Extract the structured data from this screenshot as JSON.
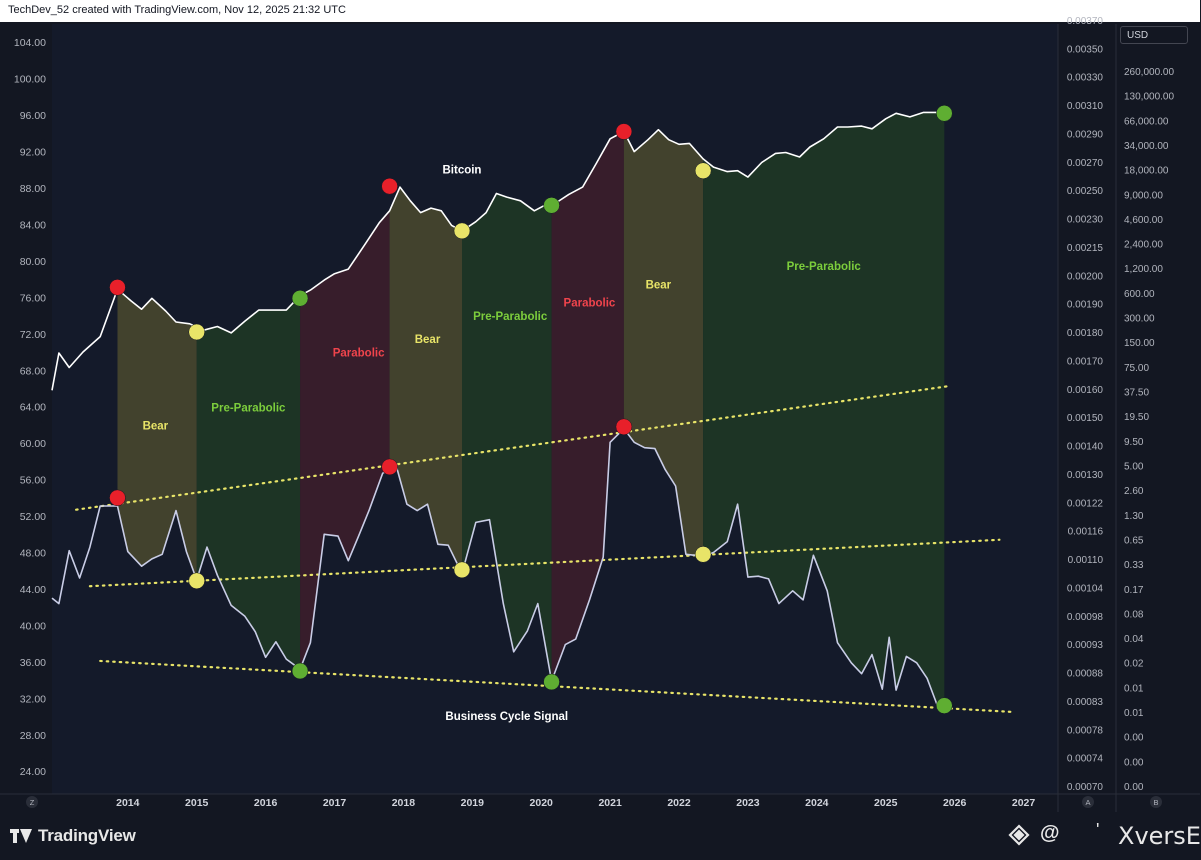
{
  "header": {
    "text": "TechDev_52 created with TradingView.com, Nov 12, 2025 21:32 UTC"
  },
  "currency_button": {
    "label": "USD"
  },
  "footer": {
    "brand": "TradingView",
    "watermark_at": "@",
    "watermark_tick": "'",
    "watermark_name": "XversE"
  },
  "axis_buttons": {
    "left": "Z",
    "a": "A",
    "b": "B"
  },
  "colors": {
    "background": "#131722",
    "bear_band": "#4a4a2e",
    "pre_parabolic_band": "#1f3a25",
    "parabolic_band": "#3d1f2c",
    "red_marker": "#e8202a",
    "yellow_marker": "#e8e468",
    "green_marker": "#5fae32",
    "trendline": "#e8e468",
    "bitcoin_line": "#ffffff",
    "signal_line": "#c9cde6",
    "label_bear": "#e8e468",
    "label_pre_parabolic": "#7ccd3c",
    "label_parabolic": "#f0444c"
  },
  "chart_data": {
    "type": "line",
    "left_axis_ticks": [
      "104.00",
      "100.00",
      "96.00",
      "92.00",
      "88.00",
      "84.00",
      "80.00",
      "76.00",
      "72.00",
      "68.00",
      "64.00",
      "60.00",
      "56.00",
      "52.00",
      "48.00",
      "44.00",
      "40.00",
      "36.00",
      "32.00",
      "28.00",
      "24.00"
    ],
    "left_axis_values": [
      104,
      100,
      96,
      92,
      88,
      84,
      80,
      76,
      72,
      68,
      64,
      60,
      56,
      52,
      48,
      44,
      40,
      36,
      32,
      28,
      24
    ],
    "mid_axis_ticks": [
      "0.00370",
      "0.00350",
      "0.00330",
      "0.00310",
      "0.00290",
      "0.00270",
      "0.00250",
      "0.00230",
      "0.00215",
      "0.00200",
      "0.00190",
      "0.00180",
      "0.00170",
      "0.00160",
      "0.00150",
      "0.00140",
      "0.00130",
      "0.00122",
      "0.00116",
      "0.00110",
      "0.00104",
      "0.00098",
      "0.00093",
      "0.00088",
      "0.00083",
      "0.00078",
      "0.00074",
      "0.00070"
    ],
    "right_axis_ticks": [
      "260,000.00",
      "130,000.00",
      "66,000.00",
      "34,000.00",
      "18,000.00",
      "9,000.00",
      "4,600.00",
      "2,400.00",
      "1,200.00",
      "600.00",
      "300.00",
      "150.00",
      "75.00",
      "37.50",
      "19.50",
      "9.50",
      "5.00",
      "2.60",
      "1.30",
      "0.65",
      "0.33",
      "0.17",
      "0.08",
      "0.04",
      "0.02",
      "0.01",
      "0.01",
      "0.00",
      "0.00",
      "0.00"
    ],
    "x_ticks": [
      "2014",
      "2015",
      "2016",
      "2017",
      "2018",
      "2019",
      "2020",
      "2021",
      "2022",
      "2023",
      "2024",
      "2025",
      "2026",
      "2027"
    ],
    "x_tick_values": [
      2014,
      2015,
      2016,
      2017,
      2018,
      2019,
      2020,
      2021,
      2022,
      2023,
      2024,
      2025,
      2026,
      2027
    ],
    "xlim": [
      2012.9,
      2027.5
    ],
    "ylim": [
      21.5,
      106
    ],
    "series": [
      {
        "name": "Bitcoin",
        "x": [
          2012.9,
          2013.0,
          2013.15,
          2013.35,
          2013.6,
          2013.85,
          2014.05,
          2014.2,
          2014.35,
          2014.55,
          2014.7,
          2014.9,
          2015.1,
          2015.3,
          2015.5,
          2015.7,
          2015.9,
          2016.1,
          2016.3,
          2016.5,
          2016.65,
          2016.85,
          2017.0,
          2017.2,
          2017.45,
          2017.65,
          2017.8,
          2017.95,
          2018.1,
          2018.25,
          2018.4,
          2018.55,
          2018.7,
          2018.85,
          2019.05,
          2019.2,
          2019.35,
          2019.5,
          2019.7,
          2019.9,
          2020.05,
          2020.2,
          2020.4,
          2020.6,
          2020.8,
          2021.0,
          2021.2,
          2021.35,
          2021.55,
          2021.7,
          2021.85,
          2022.0,
          2022.15,
          2022.35,
          2022.5,
          2022.7,
          2022.85,
          2023.0,
          2023.2,
          2023.4,
          2023.55,
          2023.75,
          2023.9,
          2024.1,
          2024.3,
          2024.45,
          2024.65,
          2024.8,
          2025.0,
          2025.15,
          2025.35,
          2025.55,
          2025.75,
          2025.85
        ],
        "y": [
          65.8,
          69.9,
          68.3,
          70.0,
          71.7,
          76.9,
          75.6,
          74.7,
          75.9,
          74.5,
          73.3,
          73.1,
          72.4,
          72.8,
          72.1,
          73.4,
          74.6,
          74.6,
          74.6,
          76.2,
          76.8,
          77.9,
          78.6,
          79.1,
          81.9,
          84.2,
          85.5,
          88.1,
          86.6,
          85.3,
          85.8,
          85.5,
          83.9,
          83.3,
          84.3,
          85.3,
          87.4,
          87.0,
          86.6,
          85.5,
          86.1,
          86.3,
          87.3,
          88.1,
          90.7,
          93.4,
          94.2,
          92.0,
          93.3,
          94.4,
          93.3,
          92.8,
          92.9,
          91.2,
          90.3,
          89.8,
          89.9,
          89.2,
          90.8,
          91.8,
          91.9,
          91.4,
          92.5,
          93.4,
          94.7,
          94.7,
          94.8,
          94.5,
          95.6,
          96.2,
          95.8,
          96.3,
          96.3,
          96.2
        ]
      },
      {
        "name": "Business Cycle Signal",
        "x": [
          2012.9,
          2013.0,
          2013.15,
          2013.3,
          2013.45,
          2013.6,
          2013.85,
          2014.0,
          2014.2,
          2014.35,
          2014.5,
          2014.7,
          2014.85,
          2015.0,
          2015.15,
          2015.3,
          2015.5,
          2015.7,
          2015.85,
          2016.0,
          2016.15,
          2016.3,
          2016.5,
          2016.65,
          2016.85,
          2017.05,
          2017.2,
          2017.35,
          2017.5,
          2017.7,
          2017.9,
          2018.05,
          2018.2,
          2018.35,
          2018.5,
          2018.65,
          2018.85,
          2019.05,
          2019.25,
          2019.45,
          2019.6,
          2019.8,
          2019.95,
          2020.15,
          2020.35,
          2020.5,
          2020.7,
          2020.9,
          2021.0,
          2021.2,
          2021.35,
          2021.5,
          2021.65,
          2021.8,
          2021.95,
          2022.1,
          2022.35,
          2022.5,
          2022.7,
          2022.85,
          2023.0,
          2023.15,
          2023.3,
          2023.45,
          2023.65,
          2023.8,
          2023.95,
          2024.15,
          2024.3,
          2024.5,
          2024.65,
          2024.8,
          2024.95,
          2025.05,
          2025.15,
          2025.3,
          2025.45,
          2025.6,
          2025.75,
          2025.85
        ],
        "y": [
          43.0,
          42.4,
          48.2,
          45.2,
          48.6,
          53.1,
          53.1,
          48.1,
          46.5,
          47.3,
          47.8,
          52.6,
          48.1,
          45.0,
          48.6,
          45.5,
          42.2,
          41.0,
          39.3,
          36.5,
          38.2,
          36.3,
          35.2,
          38.1,
          50.0,
          49.8,
          47.1,
          49.8,
          52.6,
          56.7,
          57.4,
          53.3,
          52.6,
          53.3,
          48.9,
          48.8,
          45.7,
          51.3,
          51.6,
          42.4,
          37.1,
          39.4,
          42.4,
          33.9,
          37.9,
          38.5,
          42.8,
          47.5,
          60.1,
          61.6,
          60.1,
          59.5,
          59.4,
          57.1,
          55.3,
          47.8,
          47.6,
          48.0,
          49.2,
          53.3,
          45.3,
          45.4,
          45.1,
          42.4,
          43.8,
          42.8,
          47.7,
          43.8,
          38.1,
          35.9,
          34.7,
          36.8,
          33.0,
          38.7,
          32.9,
          36.6,
          35.9,
          34.2,
          31.2,
          31.2
        ]
      }
    ],
    "cycle_markers": {
      "bitcoin": [
        {
          "x": 2013.85,
          "y": 77.1,
          "color": "red"
        },
        {
          "x": 2015.0,
          "y": 72.2,
          "color": "yellow"
        },
        {
          "x": 2016.5,
          "y": 75.9,
          "color": "green"
        },
        {
          "x": 2017.8,
          "y": 88.2,
          "color": "red"
        },
        {
          "x": 2018.85,
          "y": 83.3,
          "color": "yellow"
        },
        {
          "x": 2020.15,
          "y": 86.1,
          "color": "green"
        },
        {
          "x": 2021.2,
          "y": 94.2,
          "color": "red"
        },
        {
          "x": 2022.35,
          "y": 89.9,
          "color": "yellow"
        },
        {
          "x": 2025.85,
          "y": 96.2,
          "color": "green"
        }
      ],
      "signal": [
        {
          "x": 2013.85,
          "y": 54.0,
          "color": "red"
        },
        {
          "x": 2015.0,
          "y": 44.9,
          "color": "yellow"
        },
        {
          "x": 2016.5,
          "y": 35.0,
          "color": "green"
        },
        {
          "x": 2017.8,
          "y": 57.4,
          "color": "red"
        },
        {
          "x": 2018.85,
          "y": 46.1,
          "color": "yellow"
        },
        {
          "x": 2020.15,
          "y": 33.8,
          "color": "green"
        },
        {
          "x": 2021.2,
          "y": 61.8,
          "color": "red"
        },
        {
          "x": 2022.35,
          "y": 47.8,
          "color": "yellow"
        },
        {
          "x": 2025.85,
          "y": 31.2,
          "color": "green"
        }
      ]
    },
    "phase_bands": [
      {
        "label": "Bear",
        "phase": "bear",
        "x0": 2013.85,
        "x1": 2015.0,
        "label_x": 2014.4,
        "label_y": 61.5
      },
      {
        "label": "Pre-Parabolic",
        "phase": "pre",
        "x0": 2015.0,
        "x1": 2016.5,
        "label_x": 2015.75,
        "label_y": 63.5
      },
      {
        "label": "Parabolic",
        "phase": "para",
        "x0": 2016.5,
        "x1": 2017.8,
        "label_x": 2017.35,
        "label_y": 69.5
      },
      {
        "label": "Bear",
        "phase": "bear",
        "x0": 2017.8,
        "x1": 2018.85,
        "label_x": 2018.35,
        "label_y": 71.0
      },
      {
        "label": "Pre-Parabolic",
        "phase": "pre",
        "x0": 2018.85,
        "x1": 2020.15,
        "label_x": 2019.55,
        "label_y": 73.5
      },
      {
        "label": "Parabolic",
        "phase": "para",
        "x0": 2020.15,
        "x1": 2021.2,
        "label_x": 2020.7,
        "label_y": 75.0
      },
      {
        "label": "Bear",
        "phase": "bear",
        "x0": 2021.2,
        "x1": 2022.35,
        "label_x": 2021.7,
        "label_y": 77.0
      },
      {
        "label": "Pre-Parabolic",
        "phase": "pre",
        "x0": 2022.35,
        "x1": 2025.85,
        "label_x": 2024.1,
        "label_y": 79.0
      }
    ],
    "trendlines": [
      {
        "x0": 2013.25,
        "y0": 52.7,
        "x1": 2025.95,
        "y1": 66.3
      },
      {
        "x0": 2013.45,
        "y0": 44.3,
        "x1": 2026.65,
        "y1": 49.4
      },
      {
        "x0": 2013.6,
        "y0": 36.1,
        "x1": 2026.85,
        "y1": 30.5
      }
    ],
    "annotations": [
      {
        "text": "Bitcoin",
        "x": 2018.85,
        "y": 89.6,
        "color": "white"
      },
      {
        "text": "Business Cycle Signal",
        "x": 2019.5,
        "y": 29.6,
        "color": "white"
      }
    ]
  }
}
